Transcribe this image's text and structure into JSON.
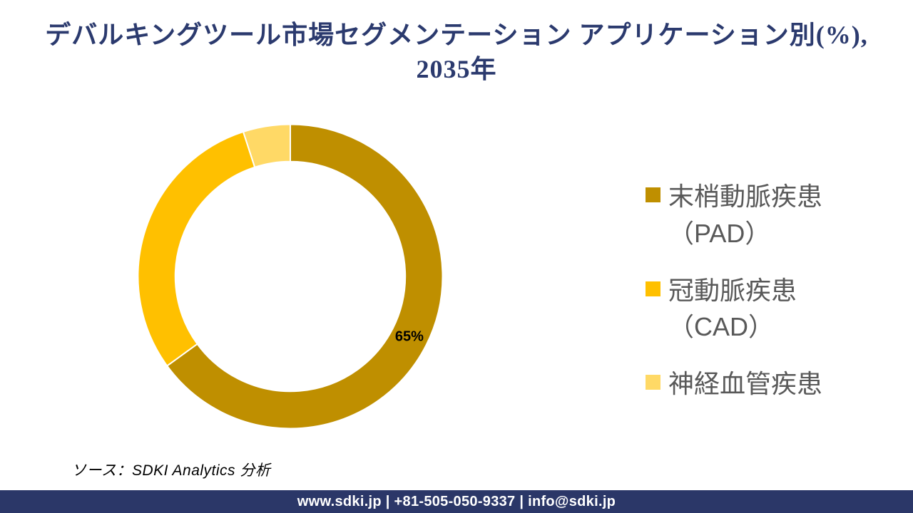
{
  "title": {
    "line1": "デバルキングツール市場セグメンテーション アプリケーション別(%),",
    "line2": "2035年",
    "color": "#2B3A6E"
  },
  "chart_data": {
    "type": "donut",
    "title": "デバルキングツール市場セグメンテーション アプリケーション別(%), 2035年",
    "unit": "%",
    "start_angle_deg": 0,
    "direction": "clockwise",
    "inner_radius_ratio": 0.755,
    "segments": [
      {
        "label": "末梢動脈疾患（PAD）",
        "value": 65,
        "color": "#BF8F00",
        "data_label": "65%"
      },
      {
        "label": "冠動脈疾患（CAD）",
        "value": 30,
        "color": "#FFC000",
        "data_label": null
      },
      {
        "label": "神経血管疾患",
        "value": 5,
        "color": "#FFD966",
        "data_label": null
      }
    ],
    "data_label_color": "#000000",
    "segment_border_color": "#FFFFFF",
    "legend_position": "right"
  },
  "legend": {
    "text_color": "#595959",
    "items": [
      {
        "lines": [
          "末梢動脈疾患",
          "（PAD）"
        ],
        "color": "#BF8F00"
      },
      {
        "lines": [
          "冠動脈疾患",
          "（CAD）"
        ],
        "color": "#FFC000"
      },
      {
        "lines": [
          "神経血管疾患"
        ],
        "color": "#FFD966"
      }
    ]
  },
  "source_note": "ソース：SDKI Analytics  分析",
  "footer": {
    "text": "www.sdki.jp | +81-505-050-9337 | info@sdki.jp",
    "background": "#2B3768",
    "text_color": "#FFFFFF"
  }
}
